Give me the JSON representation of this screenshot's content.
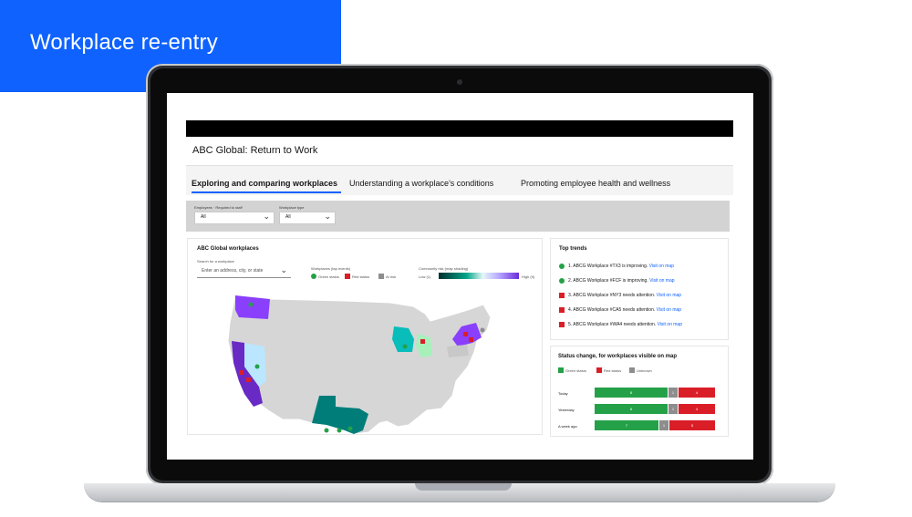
{
  "banner": {
    "title": "Workplace re-entry"
  },
  "app": {
    "title": "ABC Global: Return to Work",
    "tabs": [
      {
        "label": "Exploring and comparing workplaces",
        "active": true
      },
      {
        "label": "Understanding a workplace's conditions",
        "active": false
      },
      {
        "label": "Promoting employee health and wellness",
        "active": false
      }
    ]
  },
  "filters": [
    {
      "label": "Employees · Required to staff",
      "value": "All"
    },
    {
      "label": "Workplace type",
      "value": "All"
    }
  ],
  "map_card": {
    "title": "ABC Global workplaces",
    "search_label": "Search for a workplace",
    "search_placeholder": "Enter an address, city, or state",
    "legend": {
      "status_title": "Workplaces (tap events)",
      "items": [
        {
          "label": "Green status",
          "color": "#24a148",
          "shape": "circle"
        },
        {
          "label": "Red status",
          "color": "#da1e28",
          "shape": "square"
        },
        {
          "label": "At risk",
          "color": "#8d8d8d",
          "shape": "square"
        }
      ],
      "scale_title": "Community risk (map shading)",
      "scale_low": "Low (1)",
      "scale_high": "High (9)"
    }
  },
  "trends_card": {
    "title": "Top trends",
    "items": [
      {
        "status": "green",
        "text": "1. ABCG Workplace #TX3 is improving.",
        "link": "Visit on map"
      },
      {
        "status": "green",
        "text": "2. ABCG Workplace #FCF is improving.",
        "link": "Visit on map"
      },
      {
        "status": "red",
        "text": "3. ABCG Workplace #NY3 needs attention.",
        "link": "Visit on map"
      },
      {
        "status": "red",
        "text": "4. ABCG Workplace #CA5 needs attention.",
        "link": "Visit on map"
      },
      {
        "status": "red",
        "text": "5. ABCG Workplace #WA4 needs attention.",
        "link": "Visit on map"
      }
    ]
  },
  "status_card": {
    "title": "Status change, for workplaces visible on map",
    "legend": [
      {
        "label": "Green status",
        "color": "#24a148"
      },
      {
        "label": "Red status",
        "color": "#da1e28"
      },
      {
        "label": "Unknown",
        "color": "#8d8d8d"
      }
    ],
    "rows": [
      {
        "label": "Today",
        "green": 8,
        "unknown": 1,
        "red": 4
      },
      {
        "label": "Yesterday",
        "green": 8,
        "unknown": 1,
        "red": 4
      },
      {
        "label": "A week ago",
        "green": 7,
        "unknown": 1,
        "red": 5
      }
    ]
  }
}
